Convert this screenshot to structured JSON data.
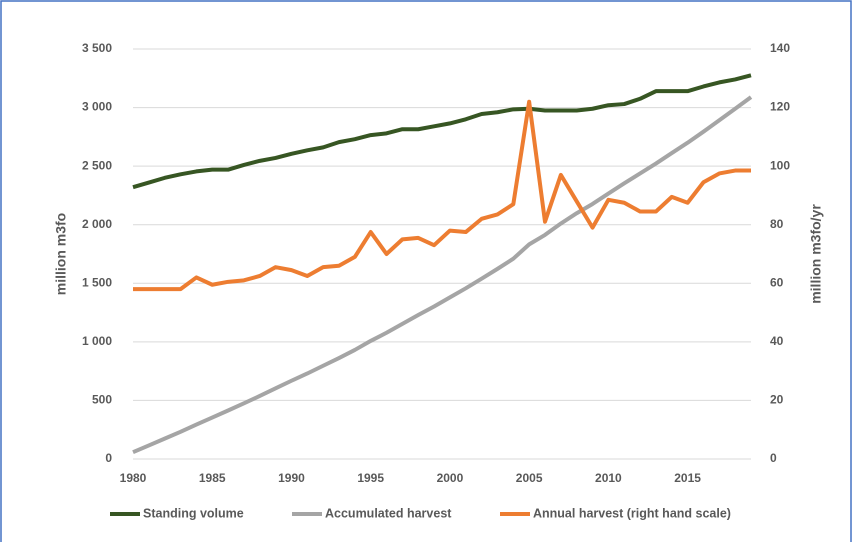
{
  "chart_data": {
    "type": "line",
    "x": [
      1980,
      1981,
      1982,
      1983,
      1984,
      1985,
      1986,
      1987,
      1988,
      1989,
      1990,
      1991,
      1992,
      1993,
      1994,
      1995,
      1996,
      1997,
      1998,
      1999,
      2000,
      2001,
      2002,
      2003,
      2004,
      2005,
      2006,
      2007,
      2008,
      2009,
      2010,
      2011,
      2012,
      2013,
      2014,
      2015,
      2016,
      2017,
      2018,
      2019
    ],
    "xlim": [
      1980,
      2019
    ],
    "xticks": [
      1980,
      1985,
      1990,
      1995,
      2000,
      2005,
      2010,
      2015
    ],
    "ylim": [
      0,
      3500
    ],
    "yticks": [
      0,
      500,
      {
        "value": 1000,
        "label": "1 000"
      },
      {
        "value": 1500,
        "label": "1 500"
      },
      {
        "value": 2000,
        "label": "2 000"
      },
      {
        "value": 2500,
        "label": "2 500"
      },
      {
        "value": 3000,
        "label": "3 000"
      },
      {
        "value": 3500,
        "label": "3 500"
      }
    ],
    "y2lim": [
      0,
      140
    ],
    "y2ticks": [
      0,
      20,
      40,
      60,
      80,
      100,
      120,
      140
    ],
    "ylabel": "million m3fo",
    "y2label": "million m3fo/yr",
    "grid": true,
    "legend": "bottom",
    "series": [
      {
        "name": "Standing volume",
        "color": "#375623",
        "values": [
          2320,
          2360,
          2400,
          2430,
          2455,
          2470,
          2470,
          2510,
          2545,
          2570,
          2605,
          2635,
          2660,
          2705,
          2730,
          2765,
          2780,
          2815,
          2815,
          2840,
          2865,
          2900,
          2945,
          2960,
          2985,
          2990,
          2975,
          2975,
          2975,
          2990,
          3020,
          3030,
          3075,
          3140,
          3140,
          3140,
          3180,
          3215,
          3240,
          3275
        ]
      },
      {
        "name": "Accumulated harvest",
        "color": "#a5a5a5",
        "values": [
          58,
          116,
          174,
          232,
          294,
          354,
          414,
          475,
          538,
          603,
          668,
          730,
          796,
          862,
          931,
          1008,
          1078,
          1153,
          1229,
          1302,
          1380,
          1457,
          1539,
          1623,
          1710,
          1832,
          1913,
          2010,
          2098,
          2177,
          2266,
          2353,
          2438,
          2522,
          2612,
          2700,
          2794,
          2892,
          2990,
          3089
        ]
      },
      {
        "name": "Annual harvest (right hand scale)",
        "color": "#ed7d31",
        "axis": "y2",
        "values": [
          58,
          58,
          58,
          58,
          62,
          59.5,
          60.5,
          61,
          62.5,
          65.5,
          64.5,
          62.5,
          65.5,
          66,
          69,
          77.5,
          70,
          75,
          75.5,
          73,
          78,
          77.5,
          82,
          83.5,
          87,
          122,
          81,
          97,
          88,
          79,
          88.5,
          87.5,
          84.5,
          84.5,
          89.5,
          87.5,
          94.5,
          97.5,
          98.5,
          98.5
        ]
      }
    ]
  }
}
